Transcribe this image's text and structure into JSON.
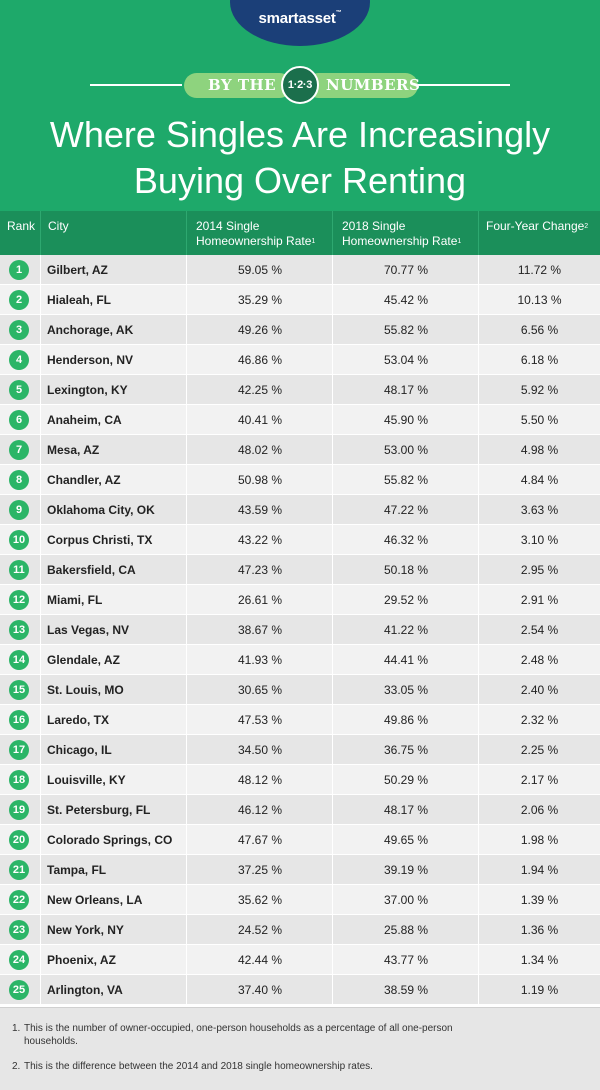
{
  "header": {
    "brand": "smartasset",
    "brand_tm": "™",
    "tagline_left": "BY THE",
    "tagline_badge": "1·2·3",
    "tagline_right": "NUMBERS",
    "title_line1": "Where Singles Are Increasingly",
    "title_line2": "Buying Over Renting"
  },
  "colors": {
    "header_bg": "#1ea96a",
    "table_header_bg": "#1b8f5a",
    "logo_bg": "#1b3f78",
    "rank_bubble": "#2bb567",
    "pill": "#8ed37e"
  },
  "table": {
    "columns": {
      "rank": "Rank",
      "city": "City",
      "rate2014_l1": "2014 Single",
      "rate2014_l2": "Homeownership Rate",
      "rate2014_sup": "1",
      "rate2018_l1": "2018 Single",
      "rate2018_l2": "Homeownership Rate",
      "rate2018_sup": "1",
      "change": "Four-Year Change",
      "change_sup": "2"
    },
    "rows": [
      {
        "rank": "1",
        "city": "Gilbert, AZ",
        "rate2014": "59.05 %",
        "rate2018": "70.77 %",
        "change": "11.72 %"
      },
      {
        "rank": "2",
        "city": "Hialeah, FL",
        "rate2014": "35.29 %",
        "rate2018": "45.42 %",
        "change": "10.13 %"
      },
      {
        "rank": "3",
        "city": "Anchorage, AK",
        "rate2014": "49.26 %",
        "rate2018": "55.82 %",
        "change": "6.56 %"
      },
      {
        "rank": "4",
        "city": "Henderson, NV",
        "rate2014": "46.86 %",
        "rate2018": "53.04 %",
        "change": "6.18 %"
      },
      {
        "rank": "5",
        "city": "Lexington, KY",
        "rate2014": "42.25 %",
        "rate2018": "48.17 %",
        "change": "5.92 %"
      },
      {
        "rank": "6",
        "city": "Anaheim, CA",
        "rate2014": "40.41 %",
        "rate2018": "45.90 %",
        "change": "5.50 %"
      },
      {
        "rank": "7",
        "city": "Mesa, AZ",
        "rate2014": "48.02 %",
        "rate2018": "53.00 %",
        "change": "4.98 %"
      },
      {
        "rank": "8",
        "city": "Chandler, AZ",
        "rate2014": "50.98 %",
        "rate2018": "55.82 %",
        "change": "4.84 %"
      },
      {
        "rank": "9",
        "city": "Oklahoma City, OK",
        "rate2014": "43.59 %",
        "rate2018": "47.22 %",
        "change": "3.63 %"
      },
      {
        "rank": "10",
        "city": "Corpus Christi, TX",
        "rate2014": "43.22 %",
        "rate2018": "46.32 %",
        "change": "3.10 %"
      },
      {
        "rank": "11",
        "city": "Bakersfield, CA",
        "rate2014": "47.23 %",
        "rate2018": "50.18 %",
        "change": "2.95 %"
      },
      {
        "rank": "12",
        "city": "Miami, FL",
        "rate2014": "26.61 %",
        "rate2018": "29.52 %",
        "change": "2.91 %"
      },
      {
        "rank": "13",
        "city": "Las Vegas, NV",
        "rate2014": "38.67 %",
        "rate2018": "41.22 %",
        "change": "2.54 %"
      },
      {
        "rank": "14",
        "city": "Glendale, AZ",
        "rate2014": "41.93 %",
        "rate2018": "44.41 %",
        "change": "2.48 %"
      },
      {
        "rank": "15",
        "city": "St. Louis, MO",
        "rate2014": "30.65 %",
        "rate2018": "33.05 %",
        "change": "2.40 %"
      },
      {
        "rank": "16",
        "city": "Laredo, TX",
        "rate2014": "47.53 %",
        "rate2018": "49.86 %",
        "change": "2.32 %"
      },
      {
        "rank": "17",
        "city": "Chicago, IL",
        "rate2014": "34.50 %",
        "rate2018": "36.75 %",
        "change": "2.25 %"
      },
      {
        "rank": "18",
        "city": "Louisville, KY",
        "rate2014": "48.12 %",
        "rate2018": "50.29 %",
        "change": "2.17 %"
      },
      {
        "rank": "19",
        "city": "St. Petersburg, FL",
        "rate2014": "46.12 %",
        "rate2018": "48.17 %",
        "change": "2.06 %"
      },
      {
        "rank": "20",
        "city": "Colorado Springs, CO",
        "rate2014": "47.67 %",
        "rate2018": "49.65 %",
        "change": "1.98 %"
      },
      {
        "rank": "21",
        "city": "Tampa, FL",
        "rate2014": "37.25 %",
        "rate2018": "39.19 %",
        "change": "1.94 %"
      },
      {
        "rank": "22",
        "city": "New Orleans, LA",
        "rate2014": "35.62 %",
        "rate2018": "37.00 %",
        "change": "1.39 %"
      },
      {
        "rank": "23",
        "city": "New York, NY",
        "rate2014": "24.52 %",
        "rate2018": "25.88 %",
        "change": "1.36 %"
      },
      {
        "rank": "24",
        "city": "Phoenix, AZ",
        "rate2014": "42.44 %",
        "rate2018": "43.77 %",
        "change": "1.34 %"
      },
      {
        "rank": "25",
        "city": "Arlington, VA",
        "rate2014": "37.40 %",
        "rate2018": "38.59 %",
        "change": "1.19 %"
      }
    ]
  },
  "footnotes": [
    {
      "num": "1.",
      "line1": "This is the number of owner-occupied, one-person households as a percentage of all one-person",
      "line2": "households."
    },
    {
      "num": "2.",
      "line1": "This is the difference between the 2014 and 2018 single homeownership rates.",
      "line2": ""
    }
  ]
}
